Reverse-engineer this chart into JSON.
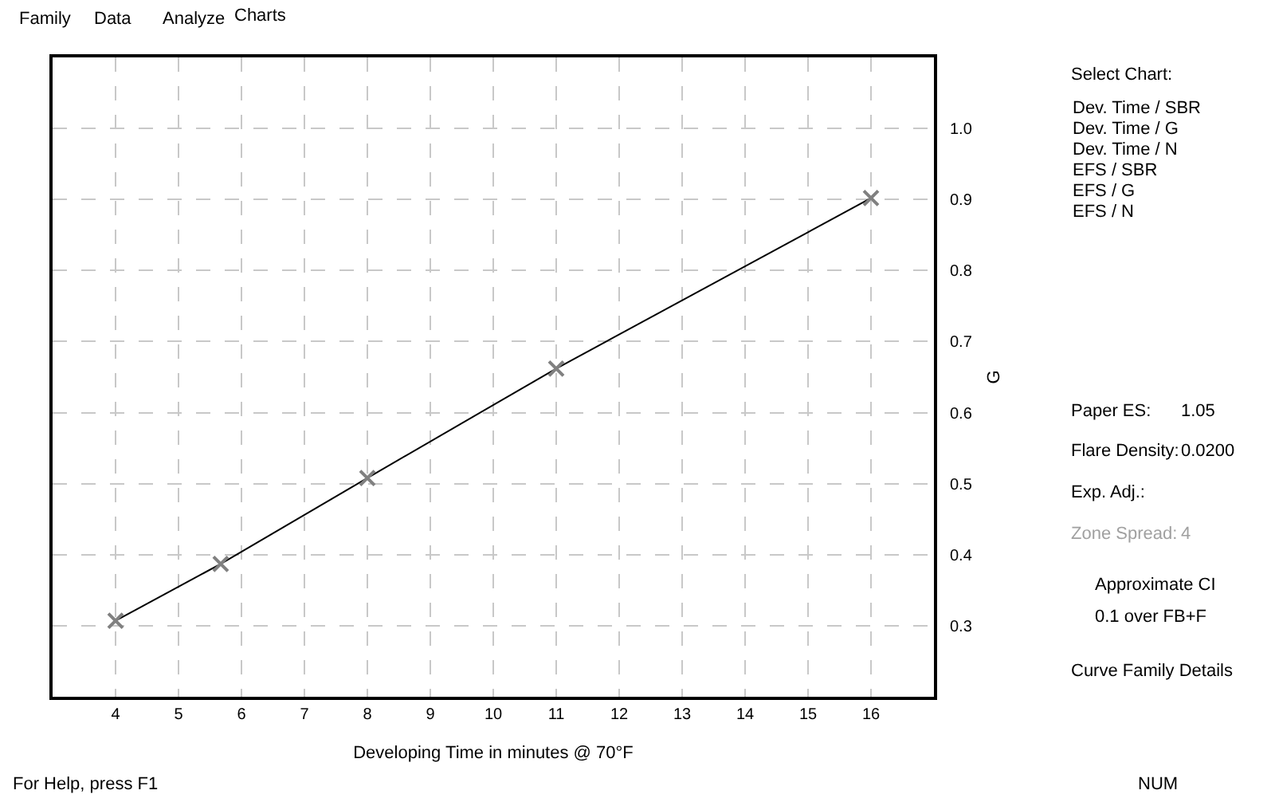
{
  "chart_data": {
    "type": "line",
    "xlabel": "Developing Time in minutes @ 70°F",
    "ylabel": "G",
    "x": [
      4,
      5.67,
      8,
      11,
      16
    ],
    "series": [
      {
        "color": "#000000",
        "marker": "none",
        "values": [
          0.307,
          0.387,
          0.508,
          0.662,
          0.902
        ]
      },
      {
        "type": "scatter",
        "color": "#808080",
        "marker": "cross",
        "values": [
          0.307,
          0.387,
          0.508,
          0.662,
          0.902
        ]
      }
    ],
    "xlim": [
      3,
      17
    ],
    "xticks": [
      4,
      5,
      6,
      7,
      8,
      9,
      10,
      11,
      12,
      13,
      14,
      15,
      16
    ],
    "ylim": [
      0.2,
      1.1
    ],
    "yticks": [
      0.3,
      0.4,
      0.5,
      0.6,
      0.7,
      0.8,
      0.9,
      {
        "value": 1.0,
        "label": "1.0"
      }
    ],
    "grid": true,
    "annotations": [
      "Family",
      "Data",
      "Analyze",
      "Charts",
      "Select Chart:",
      "Dev. Time / SBR",
      "Dev. Time / G",
      "Dev. Time / N",
      "EFS / SBR",
      "EFS / G",
      "EFS / N",
      "Paper ES:",
      "1.05",
      "Flare Density:",
      "0.0200",
      "Exp. Adj.:",
      "Zone Spread:",
      "4",
      "Approximate CI",
      "0.1 over FB+F",
      "Curve Family Details",
      "For Help, press F1",
      "NUM"
    ]
  }
}
